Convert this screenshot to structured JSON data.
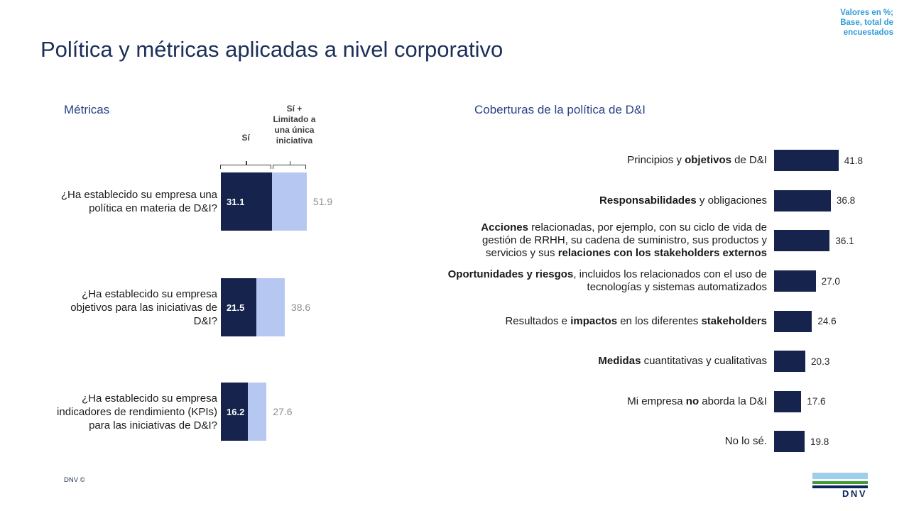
{
  "title": "Política y métricas aplicadas a nivel corporativo",
  "note": {
    "text": "Valores en %;\nBase, total de\nencuestados"
  },
  "footer": {
    "copyright": "DNV ©",
    "logo_text": "DNV"
  },
  "colors": {
    "bar_dark_navy": "#15234d",
    "bar_light_blue": "#b6c8f2",
    "title_navy": "#1b2f58",
    "chart_header_blue": "#2b4187",
    "note_cyan": "#2f9bd8",
    "value_gray": "#8e8e8e",
    "logo_light_blue": "#9ccfe9",
    "logo_green": "#3f9c35",
    "logo_navy": "#0d2458"
  },
  "chart_data": [
    {
      "type": "bar",
      "orientation": "horizontal",
      "title": "Métricas",
      "unit": "%",
      "legend_position": "top",
      "column_headers": [
        "Sí",
        "Sí +\nLimitado a\nuna única\niniciativa"
      ],
      "categories": [
        "¿Ha establecido su empresa una política en materia de D&I?",
        "¿Ha establecido su empresa objetivos para las iniciativas de D&I?",
        "¿Ha establecido su empresa indicadores de rendimiento (KPIs) para las iniciativas de D&I?"
      ],
      "series": [
        {
          "name": "Sí",
          "values": [
            31.1,
            21.5,
            16.2
          ]
        },
        {
          "name": "Sí + Limitado a una única iniciativa",
          "values": [
            51.9,
            38.6,
            27.6
          ]
        }
      ]
    },
    {
      "type": "bar",
      "orientation": "horizontal",
      "title": "Coberturas de la política de D&I",
      "unit": "%",
      "categories": [
        "Principios y **objetivos** de D&I",
        "**Responsabilidades** y obligaciones",
        "**Acciones** relacionadas, por ejemplo, con su ciclo de vida de gestión de RRHH, su cadena de suministro, sus productos y servicios y sus **relaciones con los stakeholders externos**",
        "**Oportunidades y riesgos**, incluidos los relacionados con el uso de tecnologías y sistemas automatizados",
        "Resultados e **impactos** en los diferentes **stakeholders**",
        "**Medidas** cuantitativas y cualitativas",
        "Mi empresa **no** aborda la D&I",
        "No lo sé."
      ],
      "values": [
        41.8,
        36.8,
        36.1,
        27.0,
        24.6,
        20.3,
        17.6,
        19.8
      ]
    }
  ]
}
